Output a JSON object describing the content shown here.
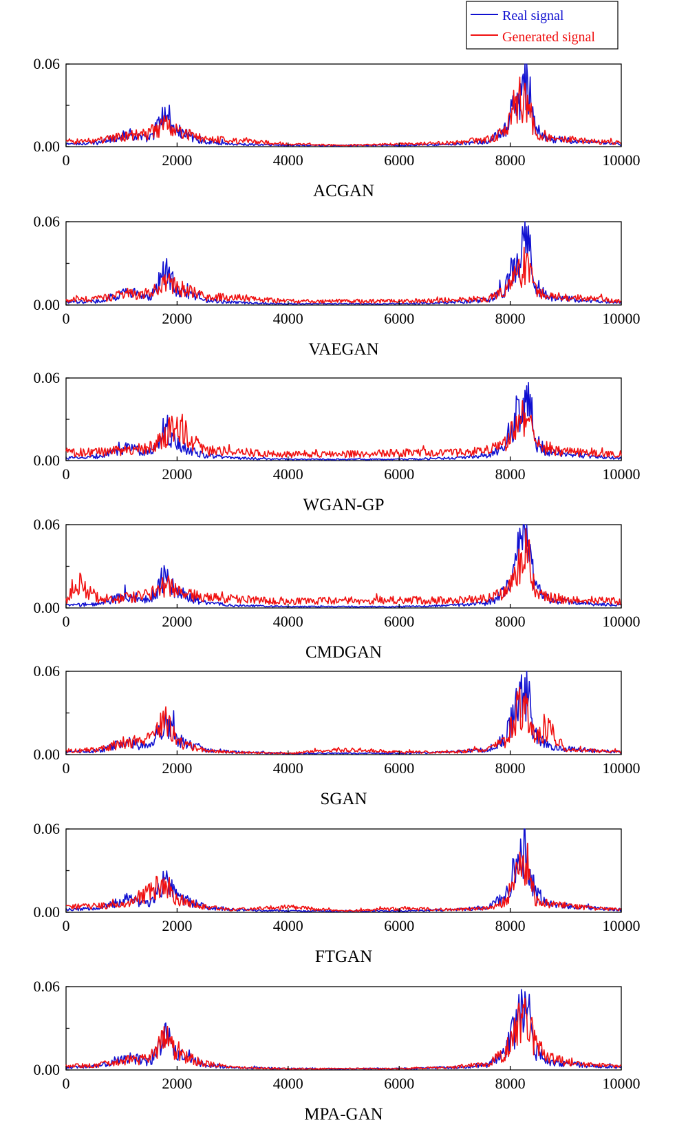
{
  "legend": {
    "items": [
      {
        "label": "Real signal",
        "color": "#1010d0"
      },
      {
        "label": "Generated signal",
        "color": "#f01010"
      }
    ]
  },
  "chart_data": [
    {
      "type": "line",
      "title": "ACGAN",
      "xlim": [
        0,
        10000
      ],
      "ylim": [
        0,
        0.06
      ],
      "xticks": [
        "0",
        "2000",
        "4000",
        "6000",
        "8000",
        "10000"
      ],
      "yticks": [
        "0.00",
        "0.06"
      ],
      "series": [
        {
          "name": "Real signal",
          "color": "#1010d0",
          "x": [
            0,
            600,
            1100,
            1500,
            1800,
            2000,
            2500,
            3000,
            4000,
            5000,
            6000,
            7000,
            7600,
            7900,
            8150,
            8300,
            8450,
            8700,
            9000,
            9500,
            10000
          ],
          "y": [
            0.002,
            0.003,
            0.01,
            0.006,
            0.026,
            0.012,
            0.004,
            0.002,
            0.001,
            0.001,
            0.001,
            0.002,
            0.004,
            0.012,
            0.04,
            0.05,
            0.015,
            0.006,
            0.005,
            0.003,
            0.002
          ]
        },
        {
          "name": "Generated signal",
          "color": "#f01010",
          "x": [
            0,
            600,
            1100,
            1500,
            1800,
            2000,
            2500,
            3000,
            4000,
            5000,
            6000,
            7000,
            7600,
            7900,
            8150,
            8300,
            8450,
            8700,
            9000,
            9500,
            10000
          ],
          "y": [
            0.004,
            0.005,
            0.008,
            0.01,
            0.018,
            0.012,
            0.006,
            0.005,
            0.002,
            0.001,
            0.002,
            0.003,
            0.006,
            0.012,
            0.03,
            0.035,
            0.012,
            0.007,
            0.006,
            0.004,
            0.003
          ]
        }
      ]
    },
    {
      "type": "line",
      "title": "VAEGAN",
      "xlim": [
        0,
        10000
      ],
      "ylim": [
        0,
        0.06
      ],
      "xticks": [
        "0",
        "2000",
        "4000",
        "6000",
        "8000",
        "10000"
      ],
      "yticks": [
        "0.00",
        "0.06"
      ],
      "series": [
        {
          "name": "Real signal",
          "color": "#1010d0",
          "x": [
            0,
            600,
            1100,
            1500,
            1800,
            2000,
            2500,
            3000,
            4000,
            5000,
            6000,
            7000,
            7600,
            7900,
            8150,
            8300,
            8450,
            8700,
            9000,
            9500,
            10000
          ],
          "y": [
            0.002,
            0.003,
            0.01,
            0.006,
            0.026,
            0.012,
            0.004,
            0.002,
            0.001,
            0.001,
            0.001,
            0.002,
            0.004,
            0.012,
            0.04,
            0.05,
            0.015,
            0.006,
            0.005,
            0.003,
            0.002
          ]
        },
        {
          "name": "Generated signal",
          "color": "#f01010",
          "x": [
            0,
            600,
            1100,
            1500,
            1800,
            2000,
            2500,
            3000,
            4000,
            5000,
            6000,
            7000,
            7600,
            7900,
            8150,
            8300,
            8450,
            8700,
            9000,
            9500,
            10000
          ],
          "y": [
            0.004,
            0.005,
            0.008,
            0.008,
            0.02,
            0.014,
            0.006,
            0.006,
            0.003,
            0.003,
            0.003,
            0.004,
            0.005,
            0.01,
            0.025,
            0.032,
            0.012,
            0.007,
            0.006,
            0.005,
            0.003
          ]
        }
      ]
    },
    {
      "type": "line",
      "title": "WGAN-GP",
      "xlim": [
        0,
        10000
      ],
      "ylim": [
        0,
        0.06
      ],
      "xticks": [
        "0",
        "2000",
        "4000",
        "6000",
        "8000",
        "10000"
      ],
      "yticks": [
        "0.00",
        "0.06"
      ],
      "series": [
        {
          "name": "Real signal",
          "color": "#1010d0",
          "x": [
            0,
            600,
            1100,
            1500,
            1800,
            2000,
            2500,
            3000,
            4000,
            5000,
            6000,
            7000,
            7600,
            7900,
            8150,
            8300,
            8450,
            8700,
            9000,
            9500,
            10000
          ],
          "y": [
            0.002,
            0.003,
            0.01,
            0.006,
            0.026,
            0.012,
            0.004,
            0.002,
            0.001,
            0.001,
            0.001,
            0.002,
            0.004,
            0.012,
            0.04,
            0.05,
            0.015,
            0.006,
            0.005,
            0.003,
            0.002
          ]
        },
        {
          "name": "Generated signal",
          "color": "#f01010",
          "x": [
            0,
            600,
            1100,
            1500,
            1800,
            2000,
            2200,
            2500,
            3000,
            4000,
            5000,
            6000,
            7000,
            7600,
            7900,
            8150,
            8300,
            8450,
            8700,
            9000,
            9500,
            10000
          ],
          "y": [
            0.006,
            0.007,
            0.008,
            0.01,
            0.02,
            0.032,
            0.018,
            0.008,
            0.007,
            0.005,
            0.005,
            0.006,
            0.006,
            0.008,
            0.012,
            0.03,
            0.035,
            0.012,
            0.008,
            0.007,
            0.006,
            0.005
          ]
        }
      ]
    },
    {
      "type": "line",
      "title": "CMDGAN",
      "xlim": [
        0,
        10000
      ],
      "ylim": [
        0,
        0.06
      ],
      "xticks": [
        "0",
        "2000",
        "4000",
        "6000",
        "8000",
        "10000"
      ],
      "yticks": [
        "0.00",
        "0.06"
      ],
      "series": [
        {
          "name": "Real signal",
          "color": "#1010d0",
          "x": [
            0,
            600,
            1100,
            1500,
            1800,
            2000,
            2500,
            3000,
            4000,
            5000,
            6000,
            7000,
            7600,
            7900,
            8150,
            8300,
            8450,
            8700,
            9000,
            9500,
            10000
          ],
          "y": [
            0.002,
            0.003,
            0.01,
            0.006,
            0.026,
            0.012,
            0.004,
            0.002,
            0.001,
            0.001,
            0.001,
            0.002,
            0.004,
            0.012,
            0.04,
            0.05,
            0.015,
            0.006,
            0.005,
            0.003,
            0.002
          ]
        },
        {
          "name": "Generated signal",
          "color": "#f01010",
          "x": [
            0,
            150,
            600,
            1100,
            1500,
            1800,
            2000,
            2500,
            3000,
            4000,
            5000,
            6000,
            7000,
            7600,
            7900,
            8150,
            8300,
            8450,
            8700,
            9000,
            9500,
            10000
          ],
          "y": [
            0.006,
            0.02,
            0.007,
            0.008,
            0.01,
            0.018,
            0.012,
            0.008,
            0.007,
            0.005,
            0.006,
            0.006,
            0.006,
            0.007,
            0.012,
            0.035,
            0.045,
            0.012,
            0.008,
            0.006,
            0.006,
            0.005
          ]
        }
      ]
    },
    {
      "type": "line",
      "title": "SGAN",
      "xlim": [
        0,
        10000
      ],
      "ylim": [
        0,
        0.06
      ],
      "xticks": [
        "0",
        "2000",
        "4000",
        "6000",
        "8000",
        "10000"
      ],
      "yticks": [
        "0.00",
        "0.06"
      ],
      "series": [
        {
          "name": "Real signal",
          "color": "#1010d0",
          "x": [
            0,
            600,
            1100,
            1500,
            1800,
            2000,
            2500,
            3000,
            4000,
            5000,
            6000,
            7000,
            7600,
            7900,
            8150,
            8300,
            8450,
            8700,
            9000,
            9500,
            10000
          ],
          "y": [
            0.002,
            0.003,
            0.01,
            0.006,
            0.026,
            0.012,
            0.004,
            0.002,
            0.001,
            0.001,
            0.001,
            0.002,
            0.004,
            0.012,
            0.04,
            0.05,
            0.015,
            0.006,
            0.005,
            0.003,
            0.002
          ]
        },
        {
          "name": "Generated signal",
          "color": "#f01010",
          "x": [
            0,
            600,
            1100,
            1500,
            1800,
            2000,
            2500,
            3000,
            4000,
            5000,
            6000,
            7000,
            7600,
            7900,
            8150,
            8300,
            8450,
            8700,
            9000,
            9500,
            10000
          ],
          "y": [
            0.003,
            0.004,
            0.01,
            0.012,
            0.026,
            0.01,
            0.003,
            0.002,
            0.001,
            0.004,
            0.002,
            0.002,
            0.004,
            0.01,
            0.035,
            0.04,
            0.012,
            0.02,
            0.004,
            0.003,
            0.002
          ]
        }
      ]
    },
    {
      "type": "line",
      "title": "FTGAN",
      "xlim": [
        0,
        10000
      ],
      "ylim": [
        0,
        0.06
      ],
      "xticks": [
        "0",
        "2000",
        "4000",
        "6000",
        "8000",
        "10000"
      ],
      "yticks": [
        "0.00",
        "0.06"
      ],
      "series": [
        {
          "name": "Real signal",
          "color": "#1010d0",
          "x": [
            0,
            600,
            1100,
            1500,
            1800,
            2000,
            2500,
            3000,
            4000,
            5000,
            6000,
            7000,
            7600,
            7900,
            8150,
            8300,
            8450,
            8700,
            9000,
            9500,
            10000
          ],
          "y": [
            0.002,
            0.003,
            0.01,
            0.006,
            0.026,
            0.012,
            0.004,
            0.002,
            0.001,
            0.001,
            0.001,
            0.002,
            0.004,
            0.012,
            0.04,
            0.05,
            0.015,
            0.006,
            0.005,
            0.003,
            0.002
          ]
        },
        {
          "name": "Generated signal",
          "color": "#f01010",
          "x": [
            0,
            600,
            1100,
            1500,
            1600,
            1800,
            2000,
            2500,
            3000,
            4000,
            5000,
            6000,
            7000,
            7600,
            7900,
            8150,
            8300,
            8450,
            8700,
            9000,
            9500,
            10000
          ],
          "y": [
            0.004,
            0.005,
            0.006,
            0.015,
            0.02,
            0.018,
            0.01,
            0.004,
            0.002,
            0.004,
            0.001,
            0.003,
            0.002,
            0.003,
            0.008,
            0.03,
            0.038,
            0.01,
            0.006,
            0.005,
            0.003,
            0.002
          ]
        }
      ]
    },
    {
      "type": "line",
      "title": "MPA-GAN",
      "xlim": [
        0,
        10000
      ],
      "ylim": [
        0,
        0.06
      ],
      "xticks": [
        "0",
        "2000",
        "4000",
        "6000",
        "8000",
        "10000"
      ],
      "yticks": [
        "0.00",
        "0.06"
      ],
      "series": [
        {
          "name": "Real signal",
          "color": "#1010d0",
          "x": [
            0,
            600,
            1100,
            1500,
            1800,
            2000,
            2500,
            3000,
            4000,
            5000,
            6000,
            7000,
            7600,
            7900,
            8150,
            8300,
            8450,
            8700,
            9000,
            9500,
            10000
          ],
          "y": [
            0.002,
            0.003,
            0.01,
            0.006,
            0.026,
            0.012,
            0.004,
            0.002,
            0.001,
            0.001,
            0.001,
            0.002,
            0.004,
            0.012,
            0.04,
            0.05,
            0.015,
            0.006,
            0.005,
            0.003,
            0.002
          ]
        },
        {
          "name": "Generated signal",
          "color": "#f01010",
          "x": [
            0,
            600,
            1100,
            1500,
            1800,
            2000,
            2500,
            3000,
            4000,
            5000,
            6000,
            7000,
            7600,
            7900,
            8150,
            8300,
            8450,
            8700,
            9000,
            9500,
            10000
          ],
          "y": [
            0.003,
            0.004,
            0.008,
            0.008,
            0.025,
            0.012,
            0.005,
            0.002,
            0.001,
            0.001,
            0.001,
            0.002,
            0.005,
            0.013,
            0.035,
            0.042,
            0.02,
            0.01,
            0.006,
            0.004,
            0.003
          ]
        }
      ]
    }
  ]
}
